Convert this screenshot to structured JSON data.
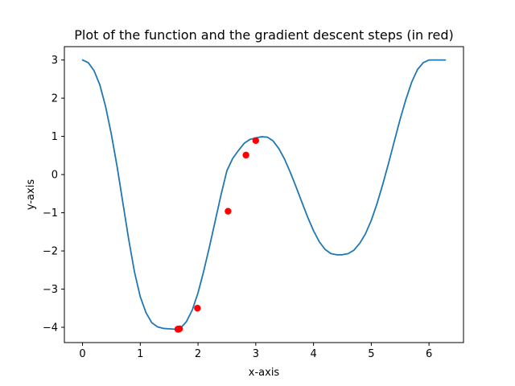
{
  "chart_data": {
    "type": "line",
    "title": "Plot of the function and the gradient descent steps (in red)",
    "xlabel": "x-axis",
    "ylabel": "y-axis",
    "xlim": [
      -0.314,
      6.597
    ],
    "ylim": [
      -4.4,
      3.35
    ],
    "xticks": [
      0,
      1,
      2,
      3,
      4,
      5,
      6
    ],
    "yticks": [
      -4,
      -3,
      -2,
      -1,
      0,
      1,
      2,
      3
    ],
    "xtick_labels": [
      "0",
      "1",
      "2",
      "3",
      "4",
      "5",
      "6"
    ],
    "ytick_labels": [
      "−4",
      "−3",
      "−2",
      "−1",
      "0",
      "1",
      "2",
      "3"
    ],
    "grid": false,
    "series": [
      {
        "kind": "line",
        "color": "#1f77b4",
        "x": [
          0.0,
          0.1,
          0.2,
          0.3,
          0.4,
          0.5,
          0.6,
          0.7,
          0.8,
          0.9,
          1.0,
          1.1,
          1.2,
          1.3,
          1.4,
          1.5,
          1.6,
          1.65,
          1.7,
          1.8,
          1.9,
          2.0,
          2.1,
          2.2,
          2.3,
          2.4,
          2.5,
          2.6,
          2.7,
          2.8,
          2.9,
          3.0,
          3.1,
          3.2,
          3.3,
          3.4,
          3.5,
          3.6,
          3.7,
          3.8,
          3.9,
          4.0,
          4.1,
          4.2,
          4.3,
          4.4,
          4.5,
          4.6,
          4.7,
          4.8,
          4.9,
          5.0,
          5.1,
          5.2,
          5.3,
          5.4,
          5.5,
          5.6,
          5.7,
          5.8,
          5.9,
          6.0,
          6.1,
          6.2,
          6.283
        ],
        "y": [
          3.0,
          2.93,
          2.72,
          2.35,
          1.78,
          1.05,
          0.2,
          -0.75,
          -1.7,
          -2.55,
          -3.2,
          -3.62,
          -3.88,
          -3.99,
          -4.03,
          -4.04,
          -4.05,
          -4.05,
          -4.02,
          -3.85,
          -3.55,
          -3.1,
          -2.52,
          -1.88,
          -1.2,
          -0.52,
          0.1,
          0.42,
          0.63,
          0.82,
          0.92,
          0.96,
          0.99,
          0.98,
          0.88,
          0.68,
          0.4,
          0.05,
          -0.33,
          -0.73,
          -1.12,
          -1.47,
          -1.76,
          -1.96,
          -2.07,
          -2.1,
          -2.1,
          -2.07,
          -1.98,
          -1.8,
          -1.55,
          -1.2,
          -0.76,
          -0.25,
          0.3,
          0.88,
          1.45,
          1.97,
          2.42,
          2.75,
          2.93,
          3.0,
          3.0,
          3.0,
          3.0
        ]
      },
      {
        "kind": "points",
        "color": "#ff0000",
        "x": [
          3.0,
          2.83,
          2.52,
          1.99,
          1.68,
          1.66,
          1.66,
          1.65
        ],
        "y": [
          0.89,
          0.51,
          -0.96,
          -3.5,
          -4.04,
          -4.05,
          -4.05,
          -4.05
        ]
      }
    ]
  }
}
